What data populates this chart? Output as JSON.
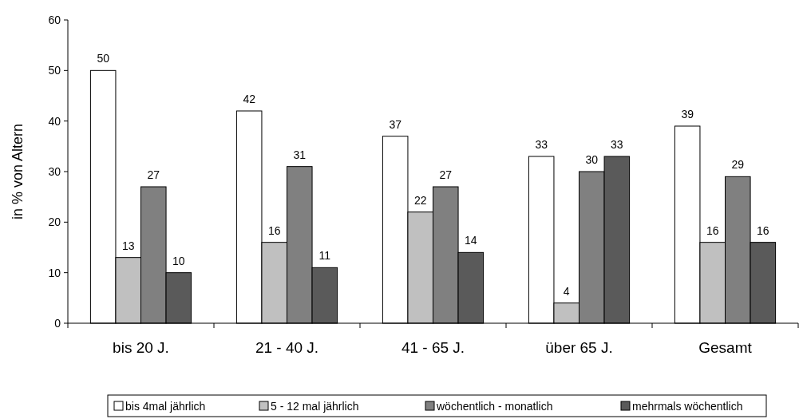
{
  "chart_data": {
    "type": "bar",
    "ylabel": "in % von Altern",
    "categories": [
      "bis 20 J.",
      "21 - 40 J.",
      "41 - 65 J.",
      "über 65 J.",
      "Gesamt"
    ],
    "series": [
      {
        "name": "bis 4mal jährlich",
        "color": "#ffffff",
        "values": [
          50,
          42,
          37,
          33,
          39
        ]
      },
      {
        "name": "5 - 12 mal jährlich",
        "color": "#c0c0c0",
        "values": [
          13,
          16,
          22,
          4,
          16
        ]
      },
      {
        "name": "wöchentlich - monatlich",
        "color": "#808080",
        "values": [
          27,
          31,
          27,
          30,
          29
        ]
      },
      {
        "name": "mehrmals wöchentlich",
        "color": "#5a5a5a",
        "values": [
          10,
          11,
          14,
          33,
          16
        ]
      }
    ],
    "ylim": [
      0,
      60
    ],
    "yticks": [
      0,
      10,
      20,
      30,
      40,
      50,
      60
    ],
    "data_labels": true,
    "legend": "bottom",
    "grid": false
  }
}
